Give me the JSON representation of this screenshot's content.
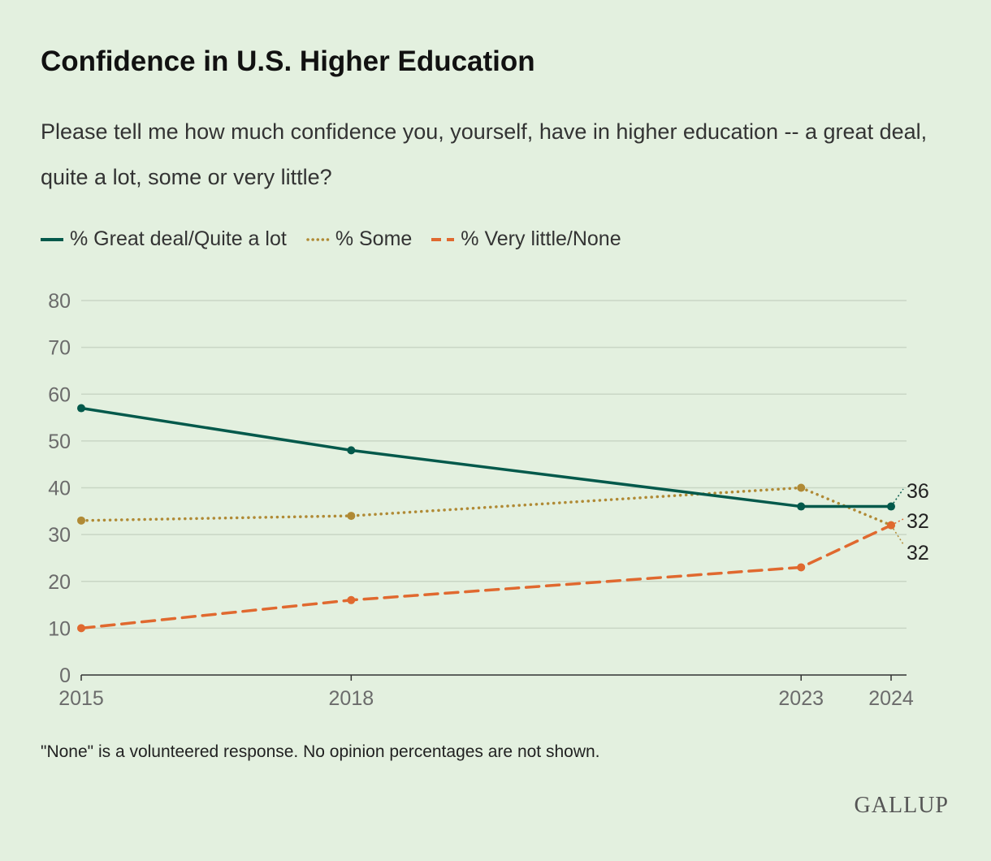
{
  "title": "Confidence in U.S. Higher Education",
  "subtitle": "Please tell me how much confidence you, yourself, have in higher education -- a great deal, quite a lot, some or very little?",
  "note": "\"None\" is a volunteered response. No opinion percentages are not shown.",
  "logo": "GALLUP",
  "chart_data": {
    "type": "line",
    "title": "Confidence in U.S. Higher Education",
    "xlabel": "",
    "ylabel": "",
    "x": [
      2015,
      2018,
      2023,
      2024
    ],
    "x_tick_labels": [
      "2015",
      "2018",
      "2023",
      "2024"
    ],
    "ylim": [
      0,
      80
    ],
    "y_ticks": [
      0,
      10,
      20,
      30,
      40,
      50,
      60,
      70,
      80
    ],
    "grid": true,
    "legend_position": "top-left",
    "series": [
      {
        "name": "% Great deal/Quite a lot",
        "values": [
          57,
          48,
          36,
          36
        ],
        "color": "#03594b",
        "style": "solid",
        "end_label": "36"
      },
      {
        "name": "% Some",
        "values": [
          33,
          34,
          40,
          32
        ],
        "color": "#b08a35",
        "style": "dotted",
        "end_label": "32"
      },
      {
        "name": "% Very little/None",
        "values": [
          10,
          16,
          23,
          32
        ],
        "color": "#e0692f",
        "style": "dashed",
        "end_label": "32"
      }
    ]
  }
}
